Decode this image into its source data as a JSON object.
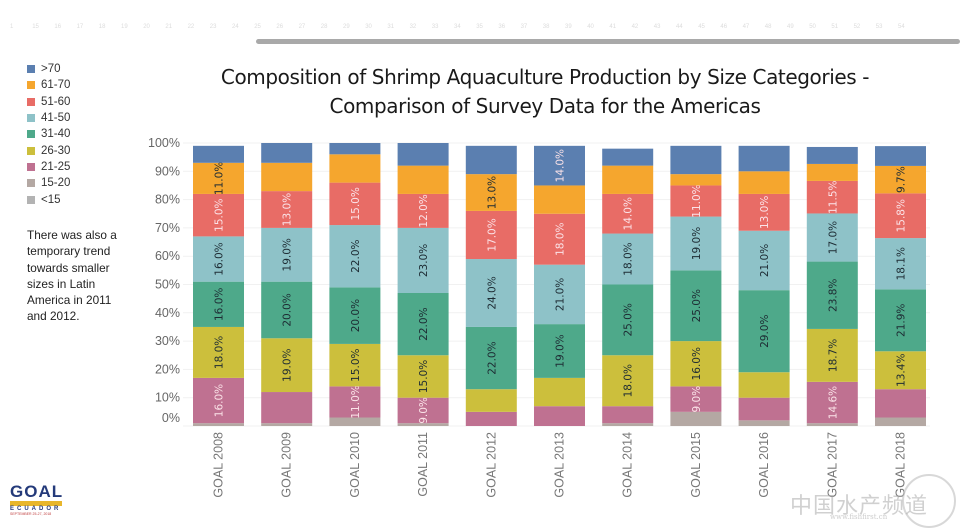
{
  "ruler": {
    "ticks": [
      "1",
      "15",
      "16",
      "17",
      "18",
      "19",
      "20",
      "21",
      "22",
      "23",
      "24",
      "25",
      "26",
      "27",
      "28",
      "29",
      "30",
      "31",
      "32",
      "33",
      "34",
      "35",
      "36",
      "37",
      "38",
      "39",
      "40",
      "41",
      "42",
      "43",
      "44",
      "45",
      "46",
      "47",
      "48",
      "49",
      "50",
      "51",
      "52",
      "53",
      "54"
    ]
  },
  "legend": {
    "items": [
      {
        "label": ">70",
        "color": "#5b7fb0"
      },
      {
        "label": "61-70",
        "color": "#f5a62e"
      },
      {
        "label": "51-60",
        "color": "#e86c66"
      },
      {
        "label": "41-50",
        "color": "#8ec2c8"
      },
      {
        "label": "31-40",
        "color": "#4ea98a"
      },
      {
        "label": "26-30",
        "color": "#ccbf3c"
      },
      {
        "label": "21-25",
        "color": "#bf7191"
      },
      {
        "label": "15-20",
        "color": "#b4a8a3"
      },
      {
        "label": "<15",
        "color": "#b3b3b3"
      }
    ]
  },
  "note": "There was also a temporary trend towards smaller sizes in Latin America in 2011 and 2012.",
  "logo": {
    "name": "GOAL",
    "band": "GUAYAQUIL",
    "country": "ECUADOR",
    "date": "SEPTEMBER 25-27, 2018"
  },
  "watermark": {
    "text": "中国水产频道",
    "url": "www.fishfirst.cn"
  },
  "chart_data": {
    "type": "bar",
    "stacked": true,
    "title": "Composition of Shrimp Aquaculture Production by Size Categories - Comparison of Survey Data for the Americas",
    "title_lines": [
      "Composition of Shrimp Aquaculture Production by Size Categories -",
      "Comparison of Survey Data for the Americas"
    ],
    "xlabel": "",
    "ylabel": "",
    "ylim": [
      0,
      100
    ],
    "yticks": [
      "0%",
      "10%",
      "20%",
      "30%",
      "40%",
      "50%",
      "60%",
      "70%",
      "80%",
      "90%",
      "100%"
    ],
    "grid": true,
    "legend_position": "left",
    "categories": [
      "GOAL 2008",
      "GOAL 2009",
      "GOAL 2010",
      "GOAL 2011",
      "GOAL 2012",
      "GOAL 2013",
      "GOAL 2014",
      "GOAL 2015",
      "GOAL 2016",
      "GOAL 2017",
      "GOAL 2018"
    ],
    "series": [
      {
        "name": "<15",
        "color": "#b3b3b3",
        "values": [
          0,
          0,
          0,
          0,
          0,
          0,
          0,
          0,
          0,
          0,
          0
        ],
        "labels": [
          "",
          "",
          "",
          "",
          "",
          "",
          "",
          "",
          "",
          "",
          ""
        ]
      },
      {
        "name": "15-20",
        "color": "#b4a8a3",
        "values": [
          1,
          1,
          3,
          1,
          0,
          0,
          1,
          5,
          2,
          1,
          3
        ],
        "labels": [
          "",
          "",
          "",
          "",
          "",
          "",
          "",
          "",
          "",
          "",
          ""
        ]
      },
      {
        "name": "21-25",
        "color": "#bf7191",
        "values": [
          16,
          11,
          11,
          9,
          5,
          7,
          6,
          9,
          8,
          14.6,
          10
        ],
        "labels": [
          "16.0%",
          "",
          "11.0%",
          "9.0%",
          "",
          "",
          "",
          "9.0%",
          "",
          "14.6%",
          ""
        ]
      },
      {
        "name": "26-30",
        "color": "#ccbf3c",
        "values": [
          18,
          19,
          15,
          15,
          8,
          10,
          18,
          16,
          9,
          18.7,
          13.4
        ],
        "labels": [
          "18.0%",
          "19.0%",
          "15.0%",
          "15.0%",
          "",
          "",
          "18.0%",
          "16.0%",
          "",
          "18.7%",
          "13.4%"
        ]
      },
      {
        "name": "31-40",
        "color": "#4ea98a",
        "values": [
          16,
          20,
          20,
          22,
          22,
          19,
          25,
          25,
          29,
          23.8,
          21.9
        ],
        "labels": [
          "16.0%",
          "20.0%",
          "20.0%",
          "22.0%",
          "22.0%",
          "19.0%",
          "25.0%",
          "25.0%",
          "29.0%",
          "23.8%",
          "21.9%"
        ]
      },
      {
        "name": "41-50",
        "color": "#8ec2c8",
        "values": [
          16,
          19,
          22,
          23,
          24,
          21,
          18,
          19,
          21,
          17,
          18.1
        ],
        "labels": [
          "16.0%",
          "19.0%",
          "22.0%",
          "23.0%",
          "24.0%",
          "21.0%",
          "18.0%",
          "19.0%",
          "21.0%",
          "17.0%",
          "18.1%"
        ]
      },
      {
        "name": "51-60",
        "color": "#e86c66",
        "values": [
          15,
          13,
          15,
          12,
          17,
          18,
          14,
          11,
          13,
          11.5,
          15.8
        ],
        "labels": [
          "15.0%",
          "13.0%",
          "15.0%",
          "12.0%",
          "17.0%",
          "18.0%",
          "14.0%",
          "11.0%",
          "13.0%",
          "11.5%",
          "15.8%"
        ]
      },
      {
        "name": "61-70",
        "color": "#f5a62e",
        "values": [
          11,
          10,
          10,
          10,
          13,
          10,
          10,
          4,
          8,
          6,
          9.7
        ],
        "labels": [
          "11.0%",
          "",
          "",
          "",
          "13.0%",
          "",
          "",
          "",
          "",
          "",
          "9.7%"
        ]
      },
      {
        "name": ">70",
        "color": "#5b7fb0",
        "values": [
          6,
          7,
          4,
          8,
          10,
          14,
          6,
          10,
          9,
          6,
          7
        ],
        "labels": [
          "",
          "",
          "",
          "",
          "",
          "14.0%",
          "",
          "",
          "",
          "",
          ""
        ]
      }
    ]
  }
}
